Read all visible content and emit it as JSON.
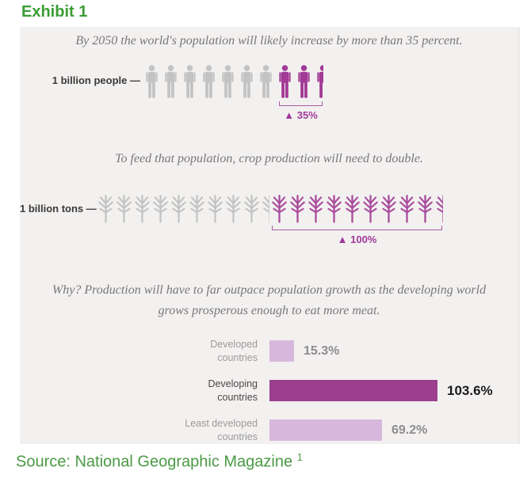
{
  "header": {
    "title": "Exhibit 1"
  },
  "source": {
    "text": "Source: National Geographic Magazine",
    "superscript": "1"
  },
  "colors": {
    "heading_green": "#3a9c33",
    "source_green": "#4a9a44",
    "panel_bg": "#f2f1f0",
    "icon_gray": "#c4c3c3",
    "icon_purple_people": "#a23a96",
    "icon_purple_wheat": "#a94b9c",
    "bar_light": "#d7b8dc",
    "bar_dark": "#9c3f8f",
    "caption_gray": "#797779"
  },
  "sections": {
    "population": {
      "caption": "By 2050 the world's population will likely increase by more than 35 percent.",
      "unit_label": "1 billion people —",
      "base_icons": {
        "type": "person",
        "full": 7,
        "half": false
      },
      "highlight_icons": {
        "type": "person",
        "full": 2,
        "half": true
      },
      "increase_label": "▲ 35%"
    },
    "crops": {
      "caption": "To feed that population, crop production will need to double.",
      "unit_label": "1 billion tons —",
      "base_icons": {
        "type": "wheat",
        "full": 9,
        "half": true
      },
      "highlight_icons": {
        "type": "wheat",
        "full": 9,
        "half": true
      },
      "increase_label": "▲ 100%"
    },
    "meat": {
      "caption_line1": "Why? Production will have to far outpace population growth as the developing world",
      "caption_line2": "grows prosperous enough to eat more meat.",
      "bars": [
        {
          "label_line1": "Developed",
          "label_line2": "countries",
          "value": 15.3,
          "value_label": "15.3%",
          "emphasis": false
        },
        {
          "label_line1": "Developing",
          "label_line2": "countries",
          "value": 103.6,
          "value_label": "103.6%",
          "emphasis": true
        },
        {
          "label_line1": "Least developed",
          "label_line2": "countries",
          "value": 69.2,
          "value_label": "69.2%",
          "emphasis": false
        }
      ]
    }
  },
  "chart_data": [
    {
      "type": "pictograph",
      "title": "By 2050 the world's population will likely increase by more than 35 percent.",
      "unit": "1 billion people",
      "icon": "person",
      "series": [
        {
          "name": "current world population (gray icons)",
          "value": 7
        },
        {
          "name": "increase by 2050 (purple icons)",
          "value": 2.5
        }
      ],
      "annotation": "▲ 35%"
    },
    {
      "type": "pictograph",
      "title": "To feed that population, crop production will need to double.",
      "unit": "1 billion tons",
      "icon": "wheat",
      "series": [
        {
          "name": "current crop production (gray icons)",
          "value": 9.5
        },
        {
          "name": "needed increase (purple icons)",
          "value": 9.5
        }
      ],
      "annotation": "▲ 100%"
    },
    {
      "type": "bar",
      "orientation": "horizontal",
      "title": "Why? Production will have to far outpace population growth as the developing world grows prosperous enough to eat more meat.",
      "categories": [
        "Developed countries",
        "Developing countries",
        "Least developed countries"
      ],
      "values": [
        15.3,
        103.6,
        69.2
      ],
      "value_labels": [
        "15.3%",
        "103.6%",
        "69.2%"
      ],
      "xlim": [
        0,
        110
      ],
      "grid": false,
      "legend": false
    }
  ]
}
